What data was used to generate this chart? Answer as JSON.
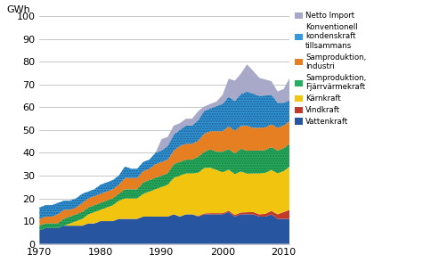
{
  "ylabel": "GWh",
  "xlim": [
    1970,
    2011
  ],
  "ylim": [
    0,
    100
  ],
  "yticks": [
    0,
    10,
    20,
    30,
    40,
    50,
    60,
    70,
    80,
    90,
    100
  ],
  "xticks": [
    1970,
    1980,
    1990,
    2000,
    2010
  ],
  "years": [
    1970,
    1971,
    1972,
    1973,
    1974,
    1975,
    1976,
    1977,
    1978,
    1979,
    1980,
    1981,
    1982,
    1983,
    1984,
    1985,
    1986,
    1987,
    1988,
    1989,
    1990,
    1991,
    1992,
    1993,
    1994,
    1995,
    1996,
    1997,
    1998,
    1999,
    2000,
    2001,
    2002,
    2003,
    2004,
    2005,
    2006,
    2007,
    2008,
    2009,
    2010,
    2011
  ],
  "vattenkraft": [
    6,
    7,
    7,
    7,
    8,
    8,
    8,
    8,
    9,
    9,
    10,
    10,
    10,
    11,
    11,
    11,
    11,
    12,
    12,
    12,
    12,
    12,
    13,
    12,
    13,
    13,
    12,
    13,
    13,
    13,
    13,
    14,
    12,
    13,
    13,
    13,
    12,
    12,
    13,
    11,
    11,
    11
  ],
  "vindkraft": [
    0,
    0,
    0,
    0,
    0,
    0,
    0,
    0,
    0,
    0,
    0,
    0,
    0,
    0,
    0,
    0,
    0,
    0,
    0,
    0,
    0,
    0,
    0,
    0,
    0,
    0,
    0.3,
    0.4,
    0.5,
    0.5,
    0.5,
    0.6,
    0.7,
    0.8,
    0.9,
    1.0,
    1.0,
    1.2,
    1.5,
    2,
    3,
    4
  ],
  "karnkraft": [
    0,
    0,
    0,
    0,
    0,
    1,
    2,
    3,
    4,
    5,
    5,
    6,
    7,
    8,
    9,
    9,
    9,
    10,
    11,
    12,
    13,
    14,
    16,
    18,
    18,
    18,
    19,
    20,
    20,
    19,
    18,
    18,
    18,
    18,
    17,
    17,
    18,
    18,
    18,
    18,
    18,
    19
  ],
  "samproduktion_fjarrv": [
    2,
    2,
    2,
    2,
    3,
    3,
    3,
    3,
    3,
    3,
    3,
    3,
    3,
    3,
    4,
    4,
    4,
    5,
    5,
    5,
    5,
    5,
    6,
    6,
    6,
    6,
    7,
    7,
    8,
    8,
    9,
    9,
    9,
    10,
    10,
    10,
    10,
    10,
    10,
    10,
    10,
    10
  ],
  "samproduktion_industri": [
    3,
    3,
    3,
    4,
    4,
    3,
    3,
    4,
    4,
    4,
    4,
    4,
    4,
    4,
    5,
    5,
    5,
    5,
    5,
    6,
    6,
    6,
    6,
    7,
    7,
    7,
    7,
    8,
    8,
    9,
    9,
    10,
    10,
    10,
    11,
    10,
    10,
    10,
    10,
    10,
    10,
    10
  ],
  "konventionell_kondenskraft": [
    5,
    5,
    5,
    5,
    4,
    4,
    4,
    4,
    3,
    3,
    4,
    4,
    4,
    4,
    5,
    4,
    4,
    4,
    4,
    5,
    5,
    6,
    7,
    7,
    8,
    8,
    9,
    10,
    10,
    11,
    12,
    13,
    13,
    14,
    15,
    15,
    14,
    14,
    13,
    11,
    10,
    9
  ],
  "netto_import": [
    0,
    0,
    0,
    0,
    0,
    0,
    0,
    0,
    0,
    0,
    0,
    0,
    0,
    0,
    0,
    0,
    0,
    0,
    0,
    0,
    5,
    4,
    4,
    3,
    3,
    3,
    4,
    2,
    2,
    2,
    4,
    8,
    9,
    9,
    12,
    10,
    8,
    7,
    6,
    5,
    6,
    10
  ],
  "colors": {
    "vattenkraft": "#2855a0",
    "vindkraft": "#c0392b",
    "karnkraft": "#f1c40f",
    "samproduktion_fjarrv": "#27ae60",
    "samproduktion_industri": "#e67e22",
    "konventionell_kondenskraft": "#3498db",
    "netto_import": "#a8a8c8"
  },
  "legend_labels": {
    "netto_import": "Netto Import",
    "konventionell_kondenskraft": "Konventionell\nkondenskraft\ntillsammans",
    "samproduktion_industri": "Samproduktion,\nIndustri",
    "samproduktion_fjarrv": "Samproduktion,\nFjärrvärmekraft",
    "karnkraft": "Kärnkraft",
    "vindkraft": "Vindkraft",
    "vattenkraft": "Vattenkraft"
  }
}
